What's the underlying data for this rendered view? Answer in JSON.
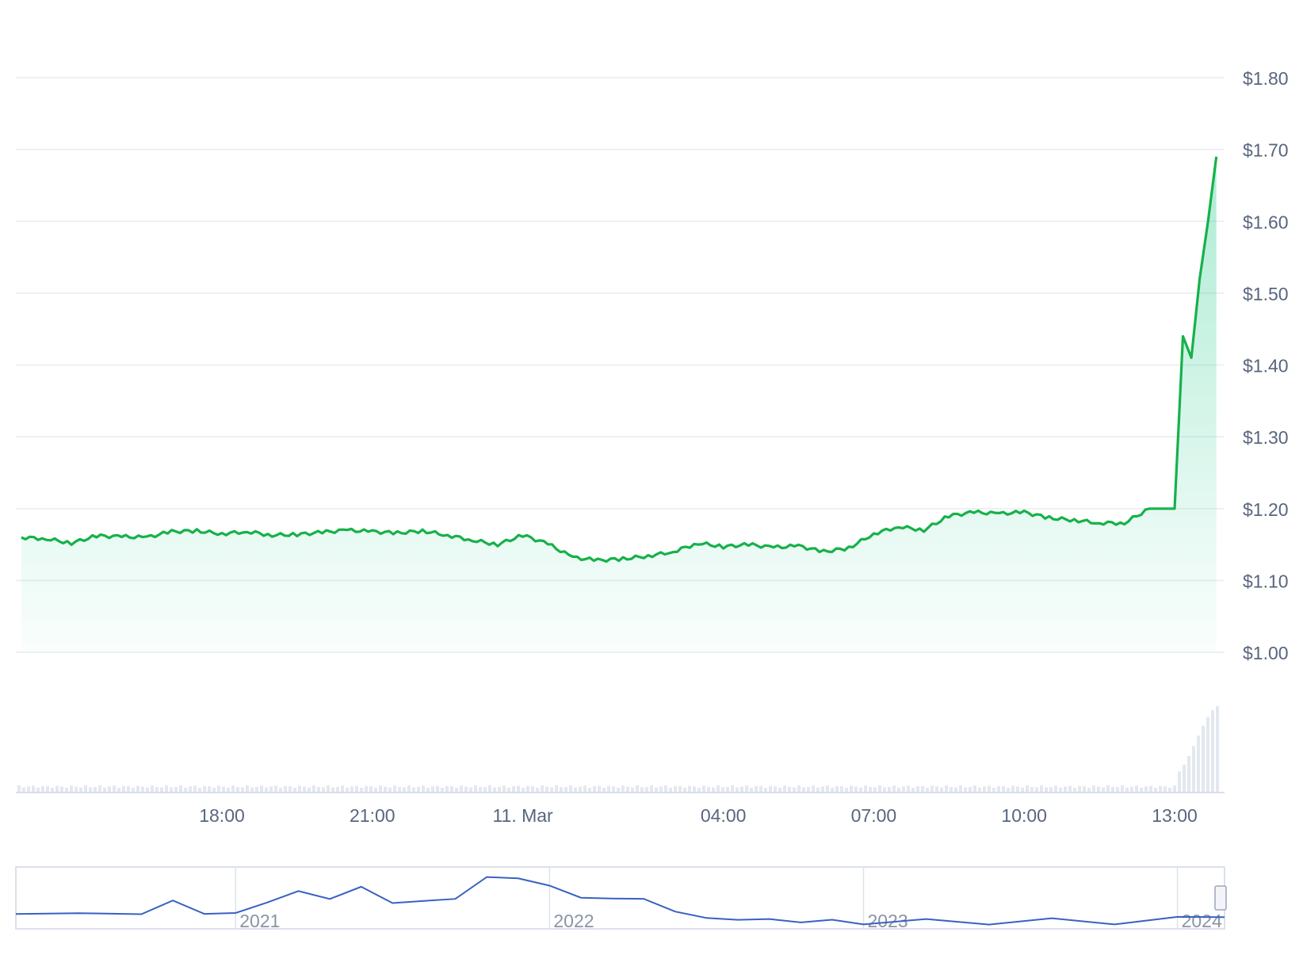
{
  "chart_data": [
    {
      "type": "area",
      "title": "",
      "xlabel": "",
      "ylabel": "",
      "ylim": [
        1.0,
        1.8
      ],
      "y_tick_labels": [
        "$1.00",
        "$1.10",
        "$1.20",
        "$1.30",
        "$1.40",
        "$1.50",
        "$1.60",
        "$1.70",
        "$1.80"
      ],
      "y_ticks": [
        1.0,
        1.1,
        1.2,
        1.3,
        1.4,
        1.5,
        1.6,
        1.7,
        1.8
      ],
      "x_tick_labels": [
        "18:00",
        "21:00",
        "11. Mar",
        "04:00",
        "07:00",
        "10:00",
        "13:00"
      ],
      "x_ticks": [
        "18:00",
        "21:00",
        "00:00",
        "04:00",
        "07:00",
        "10:00",
        "13:00"
      ],
      "x": [
        "14:00",
        "14:30",
        "15:00",
        "15:30",
        "16:00",
        "16:30",
        "17:00",
        "17:30",
        "18:00",
        "18:30",
        "19:00",
        "19:30",
        "20:00",
        "20:30",
        "21:00",
        "21:30",
        "22:00",
        "22:30",
        "23:00",
        "23:30",
        "00:00",
        "00:30",
        "01:00",
        "01:30",
        "02:00",
        "02:30",
        "03:00",
        "03:30",
        "04:00",
        "04:30",
        "05:00",
        "05:30",
        "06:00",
        "06:30",
        "07:00",
        "07:30",
        "08:00",
        "08:30",
        "09:00",
        "09:30",
        "10:00",
        "10:30",
        "11:00",
        "11:30",
        "12:00",
        "12:30",
        "13:00",
        "13:10",
        "13:20",
        "13:30",
        "13:40",
        "13:50"
      ],
      "series": [
        {
          "values": [
            1.16,
            1.158,
            1.152,
            1.162,
            1.161,
            1.16,
            1.168,
            1.169,
            1.165,
            1.168,
            1.163,
            1.164,
            1.167,
            1.17,
            1.168,
            1.166,
            1.169,
            1.163,
            1.156,
            1.15,
            1.163,
            1.151,
            1.132,
            1.128,
            1.13,
            1.134,
            1.14,
            1.152,
            1.147,
            1.15,
            1.146,
            1.148,
            1.14,
            1.145,
            1.165,
            1.175,
            1.17,
            1.19,
            1.195,
            1.193,
            1.195,
            1.187,
            1.184,
            1.18,
            1.18,
            1.2,
            1.2,
            1.44,
            1.41,
            1.52,
            1.6,
            1.69
          ]
        }
      ],
      "grid": true,
      "volume_note": "volume bars shown along bottom"
    },
    {
      "type": "line",
      "title": "",
      "x_tick_labels": [
        "2021",
        "2022",
        "2023",
        "2024"
      ],
      "x": [
        2020.3,
        2020.5,
        2020.7,
        2020.8,
        2020.9,
        2021.0,
        2021.1,
        2021.2,
        2021.3,
        2021.4,
        2021.5,
        2021.6,
        2021.7,
        2021.8,
        2021.9,
        2022.0,
        2022.1,
        2022.2,
        2022.3,
        2022.4,
        2022.5,
        2022.6,
        2022.7,
        2022.8,
        2022.9,
        2023.0,
        2023.2,
        2023.4,
        2023.6,
        2023.8,
        2024.0,
        2024.15
      ],
      "values": [
        0.25,
        0.26,
        0.27,
        0.55,
        0.3,
        0.22,
        0.6,
        0.75,
        0.7,
        0.85,
        0.6,
        0.5,
        0.7,
        1.1,
        1.2,
        0.9,
        0.7,
        0.6,
        0.65,
        0.3,
        0.15,
        0.12,
        0.1,
        0.08,
        0.06,
        0.05,
        0.06,
        0.06,
        0.07,
        0.07,
        0.1,
        0.25
      ]
    }
  ]
}
